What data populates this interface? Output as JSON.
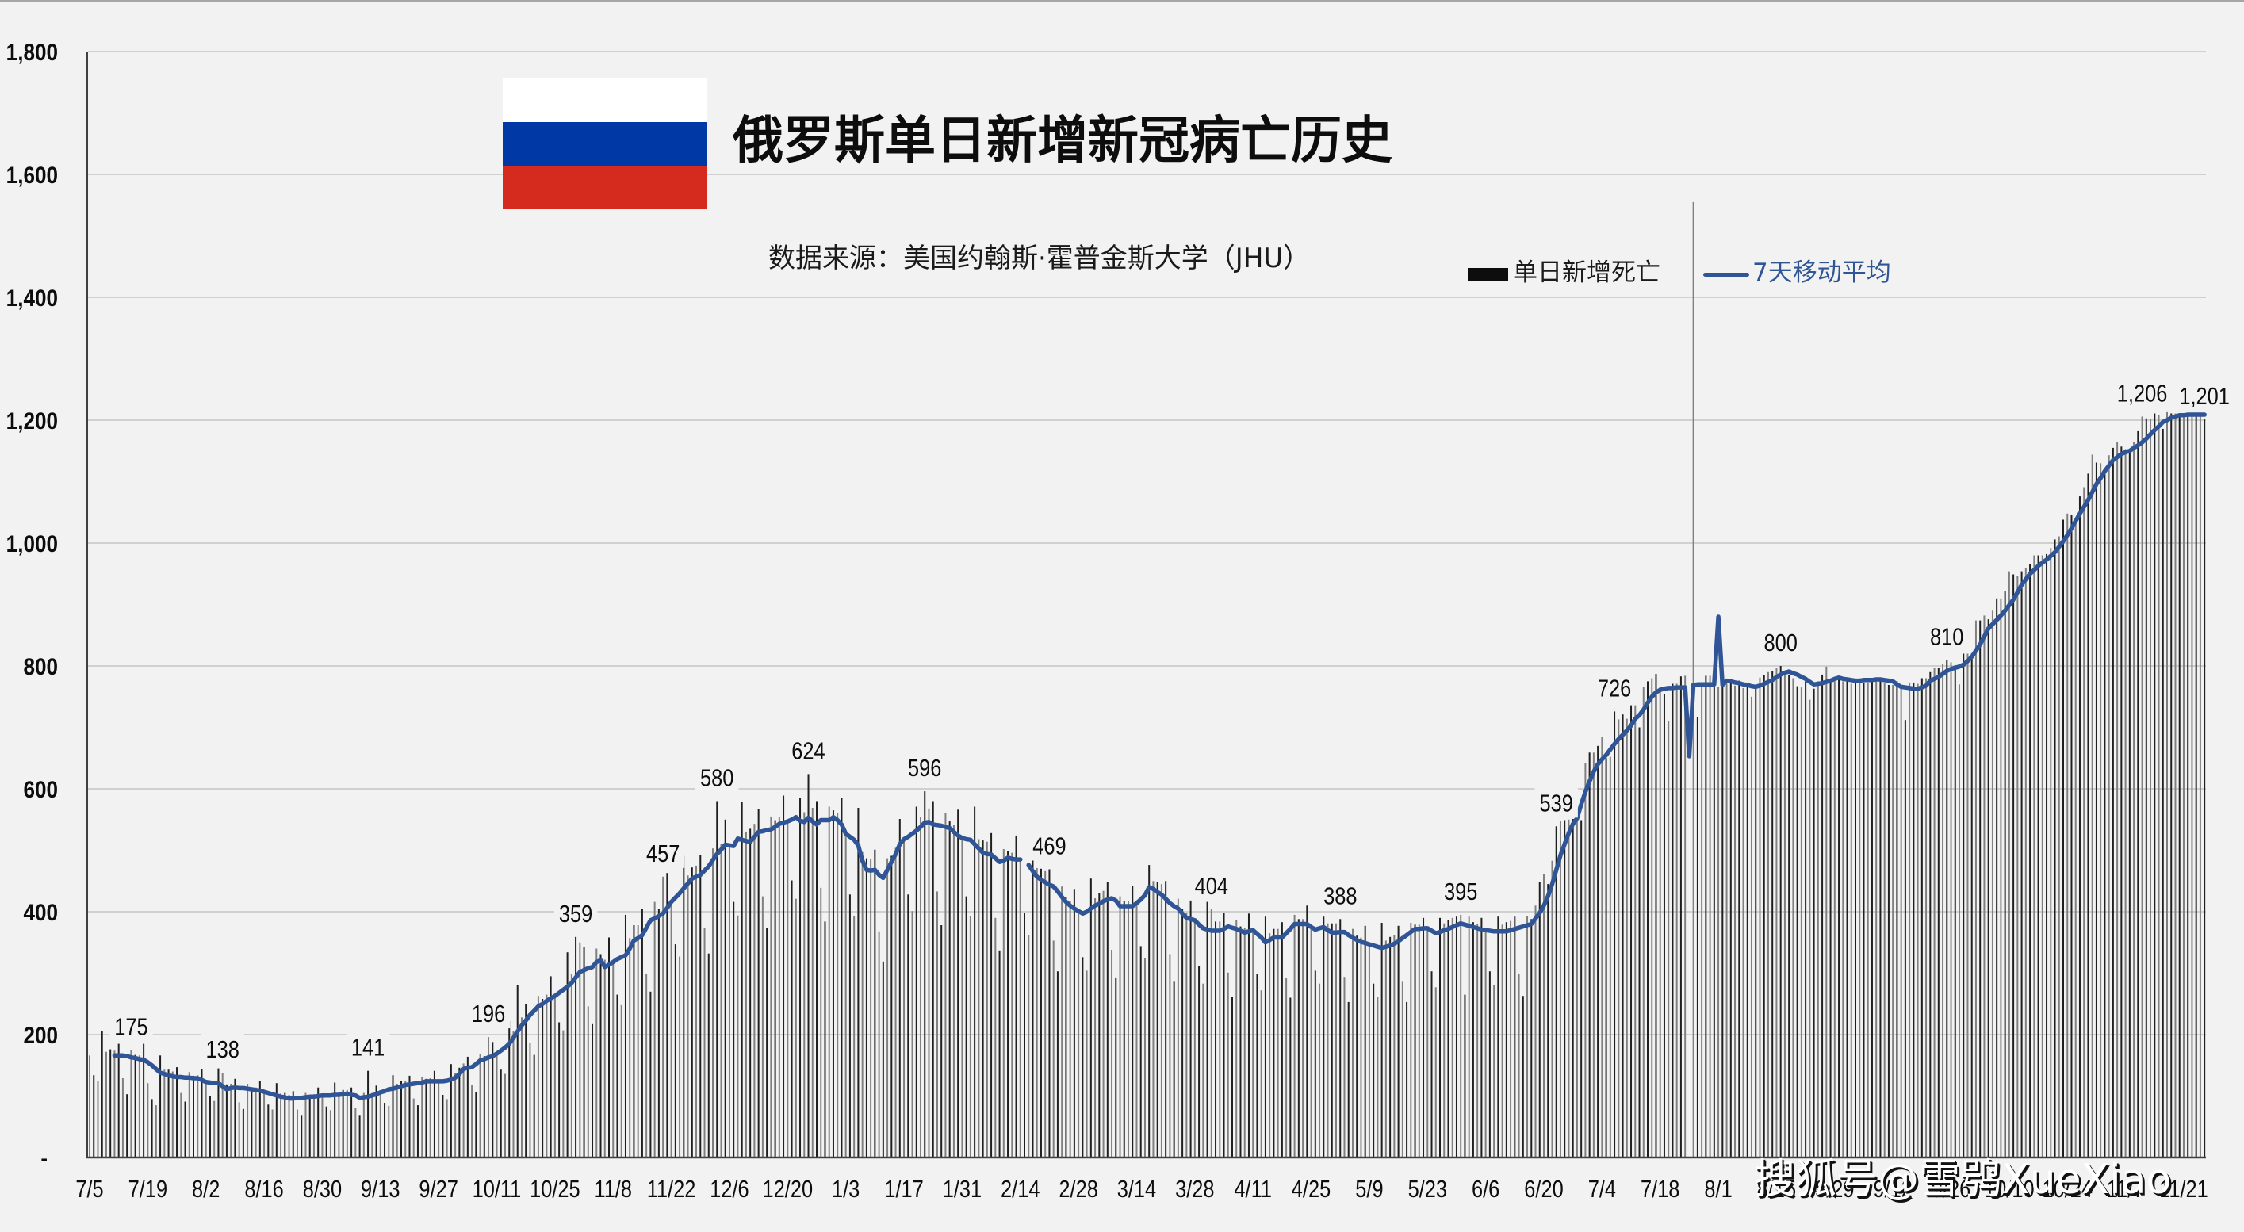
{
  "title": "俄罗斯单日新增新冠病亡历史",
  "source": "数据来源：美国约翰斯·霍普金斯大学（JHU）",
  "flag": {
    "name": "russia-flag",
    "colors": [
      "#ffffff",
      "#0039a6",
      "#d52b1e"
    ]
  },
  "legend": {
    "bars_label": "单日新增死亡",
    "line_label": "7天移动平均"
  },
  "watermark": "搜狐号@雪鸮XueXiao",
  "colors": {
    "background": "#f2f2f2",
    "bar": "#1f1f1f",
    "bar_alt": "#808080",
    "line": "#2f5597",
    "grid": "#d0d0d0",
    "axis": "#404040",
    "frame": "#a6a6a6"
  },
  "chart_data": {
    "type": "bar",
    "title": "俄罗斯单日新增新冠病亡历史",
    "subtitle": "数据来源：美国约翰斯·霍普金斯大学（JHU）",
    "xlabel": "",
    "ylabel": "",
    "ylim": [
      0,
      1800
    ],
    "yticks": [
      0,
      200,
      400,
      600,
      800,
      1000,
      1200,
      1400,
      1600,
      1800
    ],
    "ytick_labels": [
      "-",
      "200",
      "400",
      "600",
      "800",
      "1,000",
      "1,200",
      "1,400",
      "1,600",
      "1,800"
    ],
    "grid": true,
    "legend_position": "top-right",
    "x_tick_every_days": 14,
    "x_tick_labels": [
      "7/5",
      "7/19",
      "8/2",
      "8/16",
      "8/30",
      "9/13",
      "9/27",
      "10/11",
      "10/25",
      "11/8",
      "11/22",
      "12/6",
      "12/20",
      "1/3",
      "1/17",
      "1/31",
      "2/14",
      "2/28",
      "3/14",
      "3/28",
      "4/11",
      "4/25",
      "5/9",
      "5/23",
      "6/6",
      "6/20",
      "7/4",
      "7/18",
      "8/1",
      "8/15",
      "8/29",
      "9/12",
      "9/26",
      "10/10",
      "10/24",
      "11/7",
      "11/21"
    ],
    "series": [
      {
        "name": "单日新增死亡",
        "type": "bar",
        "values": [
          166,
          134,
          125,
          206,
          172,
          176,
          174,
          185,
          129,
          103,
          175,
          167,
          166,
          185,
          121,
          95,
          85,
          166,
          143,
          143,
          140,
          147,
          105,
          91,
          139,
          133,
          134,
          144,
          123,
          100,
          92,
          145,
          138,
          119,
          120,
          128,
          90,
          79,
          120,
          114,
          114,
          124,
          107,
          86,
          78,
          121,
          104,
          105,
          102,
          108,
          78,
          68,
          105,
          102,
          103,
          114,
          101,
          83,
          77,
          122,
          107,
          110,
          110,
          114,
          81,
          68,
          105,
          141,
          105,
          117,
          106,
          89,
          84,
          134,
          120,
          124,
          125,
          133,
          96,
          85,
          131,
          128,
          129,
          141,
          124,
          102,
          95,
          152,
          137,
          146,
          153,
          164,
          118,
          106,
          169,
          165,
          196,
          188,
          169,
          143,
          136,
          222,
          205,
          280,
          228,
          250,
          186,
          167,
          263,
          258,
          265,
          295,
          263,
          220,
          207,
          334,
          298,
          359,
          350,
          342,
          246,
          217,
          340,
          331,
          322,
          358,
          318,
          265,
          248,
          395,
          357,
          378,
          378,
          405,
          299,
          270,
          416,
          405,
          457,
          463,
          416,
          347,
          327,
          491,
          459,
          472,
          475,
          492,
          374,
          332,
          503,
          580,
          511,
          550,
          508,
          416,
          394,
          579,
          530,
          535,
          543,
          567,
          425,
          373,
          555,
          549,
          554,
          589,
          547,
          451,
          421,
          585,
          562,
          624,
          569,
          580,
          439,
          384,
          571,
          565,
          560,
          585,
          527,
          428,
          393,
          569,
          497,
          487,
          486,
          501,
          368,
          319,
          487,
          491,
          504,
          551,
          518,
          428,
          401,
          571,
          554,
          596,
          568,
          580,
          433,
          378,
          560,
          547,
          541,
          566,
          520,
          425,
          393,
          571,
          518,
          516,
          514,
          528,
          390,
          337,
          502,
          498,
          496,
          524,
          485,
          398,
          362,
          522,
          471,
          470,
          466,
          469,
          353,
          303,
          441,
          424,
          418,
          437,
          401,
          326,
          304,
          454,
          422,
          430,
          434,
          449,
          338,
          293,
          425,
          417,
          417,
          442,
          414,
          344,
          325,
          476,
          450,
          449,
          445,
          450,
          331,
          286,
          421,
          405,
          398,
          419,
          386,
          311,
          283,
          416,
          404,
          384,
          384,
          398,
          301,
          262,
          387,
          376,
          373,
          397,
          370,
          298,
          272,
          392,
          365,
          372,
          372,
          383,
          292,
          260,
          395,
          388,
          388,
          410,
          375,
          304,
          283,
          392,
          381,
          381,
          381,
          388,
          294,
          253,
          372,
          361,
          358,
          377,
          347,
          283,
          261,
          382,
          353,
          359,
          362,
          377,
          286,
          253,
          382,
          379,
          379,
          390,
          373,
          303,
          277,
          390,
          381,
          387,
          390,
          392,
          395,
          265,
          392,
          383,
          380,
          390,
          370,
          303,
          280,
          392,
          379,
          383,
          385,
          392,
          299,
          263,
          393,
          388,
          410,
          449,
          461,
          445,
          483,
          539,
          548,
          549,
          550,
          551,
          552,
          549,
          642,
          659,
          659,
          670,
          684,
          650,
          652,
          726,
          713,
          721,
          714,
          736,
          736,
          700,
          766,
          775,
          780,
          787,
          766,
          754,
          711,
          771,
          771,
          783,
          784,
          0,
          1555,
          717,
          771,
          784,
          784,
          771,
          766,
          775,
          771,
          779,
          768,
          776,
          764,
          773,
          750,
          769,
          781,
          785,
          790,
          792,
          796,
          800,
          790,
          786,
          780,
          767,
          765,
          775,
          745,
          763,
          775,
          786,
          799,
          773,
          775,
          778,
          775,
          775,
          771,
          773,
          773,
          773,
          773,
          775,
          775,
          775,
          773,
          769,
          769,
          775,
          763,
          712,
          773,
          773,
          771,
          780,
          780,
          790,
          797,
          797,
          803,
          810,
          806,
          801,
          770,
          820,
          820,
          820,
          874,
          874,
          882,
          876,
          890,
          910,
          910,
          922,
          954,
          949,
          947,
          954,
          960,
          966,
          980,
          980,
          980,
          982,
          992,
          1006,
          1011,
          1038,
          1048,
          1046,
          1041,
          1076,
          1091,
          1113,
          1144,
          1131,
          1130,
          1118,
          1143,
          1155,
          1164,
          1157,
          1153,
          1153,
          1164,
          1182,
          1206,
          1203,
          1202,
          1211,
          1208,
          1186,
          1213,
          1211,
          1211,
          1211,
          1211,
          1211,
          1211,
          1209,
          1207,
          1201
        ]
      },
      {
        "name": "7天移动平均",
        "type": "line",
        "values": [
          null,
          null,
          null,
          null,
          null,
          null,
          166,
          166,
          166,
          165,
          163,
          162,
          160,
          159,
          155,
          150,
          144,
          138,
          136,
          134,
          132,
          131,
          131,
          130,
          130,
          129,
          129,
          126,
          123,
          122,
          121,
          121,
          116,
          111,
          113,
          114,
          113,
          113,
          112,
          111,
          110,
          109,
          107,
          105,
          103,
          101,
          99,
          98,
          96,
          96,
          97,
          97,
          98,
          99,
          99,
          100,
          101,
          101,
          101,
          102,
          102,
          103,
          104,
          102,
          101,
          97,
          98,
          99,
          101,
          103,
          106,
          108,
          111,
          112,
          114,
          116,
          118,
          119,
          120,
          121,
          122,
          124,
          124,
          124,
          124,
          124,
          125,
          127,
          130,
          136,
          144,
          146,
          147,
          152,
          158,
          160,
          163,
          165,
          169,
          174,
          179,
          185,
          195,
          205,
          215,
          223,
          232,
          239,
          246,
          250,
          255,
          259,
          263,
          268,
          273,
          278,
          284,
          293,
          302,
          305,
          308,
          310,
          318,
          321,
          310,
          314,
          318,
          323,
          326,
          329,
          340,
          353,
          357,
          362,
          374,
          386,
          389,
          393,
          397,
          406,
          416,
          423,
          430,
          438,
          446,
          454,
          457,
          460,
          467,
          474,
          484,
          494,
          501,
          509,
          508,
          507,
          519,
          517,
          515,
          514,
          522,
          530,
          531,
          533,
          534,
          538,
          543,
          545,
          547,
          550,
          554,
          548,
          546,
          553,
          547,
          542,
          549,
          549,
          549,
          554,
          549,
          542,
          527,
          522,
          517,
          508,
          483,
          468,
          467,
          468,
          460,
          455,
          468,
          481,
          494,
          510,
          518,
          522,
          527,
          532,
          538,
          545,
          546,
          542,
          541,
          540,
          538,
          536,
          530,
          524,
          520,
          518,
          517,
          510,
          503,
          496,
          494,
          493,
          487,
          481,
          483,
          488,
          486,
          485,
          485,
          null,
          476,
          466,
          457,
          452,
          448,
          444,
          441,
          433,
          424,
          416,
          410,
          405,
          401,
          397,
          400,
          405,
          410,
          413,
          417,
          420,
          422,
          418,
          409,
          409,
          409,
          409,
          414,
          420,
          427,
          440,
          437,
          432,
          428,
          421,
          414,
          409,
          405,
          397,
          390,
          388,
          386,
          379,
          373,
          371,
          369,
          369,
          369,
          372,
          376,
          374,
          372,
          369,
          366,
          368,
          370,
          364,
          358,
          350,
          354,
          358,
          358,
          358,
          365,
          372,
          380,
          380,
          380,
          380,
          375,
          371,
          373,
          375,
          370,
          366,
          366,
          367,
          367,
          362,
          358,
          354,
          351,
          349,
          347,
          345,
          343,
          341,
          343,
          345,
          348,
          352,
          357,
          362,
          367,
          372,
          372,
          373,
          373,
          369,
          365,
          367,
          370,
          372,
          375,
          378,
          381,
          379,
          377,
          375,
          373,
          371,
          370,
          369,
          368,
          368,
          368,
          368,
          370,
          372,
          374,
          376,
          378,
          380,
          389,
          398,
          410,
          425,
          445,
          468,
          492,
          510,
          528,
          543,
          552,
          575,
          595,
          612,
          628,
          640,
          648,
          655,
          664,
          673,
          681,
          688,
          695,
          703,
          714,
          720,
          729,
          740,
          750,
          757,
          761,
          763,
          764,
          764,
          765,
          765,
          765,
          653,
          769,
          770,
          770,
          770,
          770,
          770,
          880,
          769,
          776,
          775,
          773,
          772,
          770,
          769,
          767,
          766,
          768,
          771,
          774,
          777,
          782,
          786,
          789,
          791,
          788,
          786,
          782,
          779,
          774,
          770,
          771,
          772,
          774,
          776,
          779,
          781,
          779,
          778,
          777,
          776,
          776,
          777,
          777,
          777,
          778,
          778,
          777,
          776,
          775,
          770,
          766,
          765,
          764,
          763,
          763,
          765,
          768,
          776,
          779,
          782,
          787,
          792,
          795,
          797,
          799,
          802,
          808,
          815,
          825,
          835,
          848,
          861,
          868,
          875,
          882,
          890,
          899,
          908,
          920,
          932,
          941,
          950,
          956,
          963,
          968,
          973,
          979,
          985,
          994,
          1003,
          1013,
          1024,
          1036,
          1048,
          1059,
          1070,
          1083,
          1096,
          1106,
          1117,
          1126,
          1135,
          1140,
          1145,
          1148,
          1150,
          1155,
          1159,
          1164,
          1170,
          1177,
          1184,
          1190,
          1197,
          1200,
          1204,
          1206,
          1208,
          1208,
          1209,
          1209,
          1209,
          1209,
          1209
        ]
      }
    ],
    "annotations": [
      {
        "day": 10,
        "value": 175,
        "label": "175"
      },
      {
        "day": 32,
        "value": 138,
        "label": "138"
      },
      {
        "day": 67,
        "value": 141,
        "label": "141"
      },
      {
        "day": 96,
        "value": 196,
        "label": "196"
      },
      {
        "day": 117,
        "value": 359,
        "label": "359"
      },
      {
        "day": 138,
        "value": 457,
        "label": "457"
      },
      {
        "day": 151,
        "value": 580,
        "label": "580"
      },
      {
        "day": 173,
        "value": 624,
        "label": "624"
      },
      {
        "day": 201,
        "value": 596,
        "label": "596"
      },
      {
        "day": 231,
        "value": 469,
        "label": "469"
      },
      {
        "day": 270,
        "value": 404,
        "label": "404"
      },
      {
        "day": 301,
        "value": 388,
        "label": "388"
      },
      {
        "day": 330,
        "value": 395,
        "label": "395"
      },
      {
        "day": 353,
        "value": 539,
        "label": "539"
      },
      {
        "day": 367,
        "value": 726,
        "label": "726"
      },
      {
        "day": 407,
        "value": 800,
        "label": "800"
      },
      {
        "day": 447,
        "value": 810,
        "label": "810"
      },
      {
        "day": 494,
        "value": 1206,
        "label": "1,206"
      },
      {
        "day": 509,
        "value": 1201,
        "label": "1,201"
      }
    ]
  }
}
